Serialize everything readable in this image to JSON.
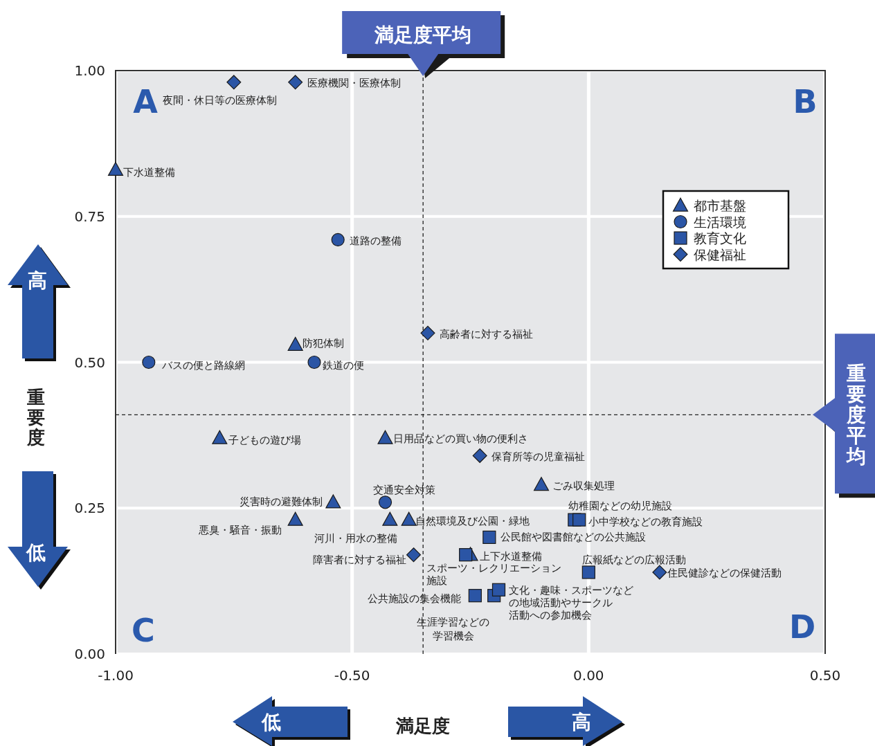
{
  "chart_data": {
    "type": "scatter",
    "xlabel": "満足度",
    "ylabel": "重要度",
    "xlim": [
      -1,
      0.5
    ],
    "ylim": [
      0,
      1
    ],
    "xticks": [
      {
        "value": -1,
        "label": "-1.00"
      },
      {
        "value": -0.5,
        "label": "-0.50"
      },
      {
        "value": 0,
        "label": "0.00"
      },
      {
        "value": 0.5,
        "label": "0.50"
      }
    ],
    "yticks": [
      {
        "value": 0,
        "label": "0.00"
      },
      {
        "value": 0.25,
        "label": "0.25"
      },
      {
        "value": 0.5,
        "label": "0.50"
      },
      {
        "value": 0.75,
        "label": "0.75"
      },
      {
        "value": 1,
        "label": "1.00"
      }
    ],
    "grid": true,
    "legend": "top right",
    "series": [
      {
        "name": "都市基盤",
        "color": "#2b55a5",
        "marker": "triangle",
        "x": [
          -1.0,
          -0.62,
          -0.78,
          -0.43,
          -0.54,
          -0.62,
          -0.42,
          -0.38,
          -0.1,
          -0.25
        ],
        "values": [
          0.83,
          0.53,
          0.37,
          0.37,
          0.26,
          0.23,
          0.23,
          0.23,
          0.29,
          0.17
        ]
      },
      {
        "name": "生活環境",
        "color": "#2b55a5",
        "marker": "circle",
        "x": [
          -0.53,
          -0.93,
          -0.58,
          -0.43
        ],
        "values": [
          0.71,
          0.5,
          0.5,
          0.26
        ]
      },
      {
        "name": "教育文化",
        "color": "#2b55a5",
        "marker": "square",
        "x": [
          -0.03,
          -0.02,
          -0.21,
          -0.26,
          0.0,
          -0.24,
          -0.2,
          -0.19
        ],
        "values": [
          0.23,
          0.23,
          0.2,
          0.17,
          0.14,
          0.1,
          0.1,
          0.11
        ]
      },
      {
        "name": "保健福祉",
        "color": "#2b55a5",
        "marker": "diamond",
        "x": [
          -0.75,
          -0.62,
          -0.34,
          -0.23,
          -0.37,
          0.15
        ],
        "values": [
          0.98,
          0.98,
          0.55,
          0.34,
          0.17,
          0.14
        ]
      }
    ],
    "ref_lines": [
      {
        "axis": "x",
        "value": -0.35,
        "label": "満足度平均",
        "line_style": "dashed"
      },
      {
        "axis": "y",
        "value": 0.41,
        "label": "重要度平均",
        "line_style": "dashed"
      }
    ],
    "annotations": [
      {
        "text": "下水道整備",
        "x": -1.0,
        "y": 0.83
      },
      {
        "text": "防犯体制",
        "x": -0.62,
        "y": 0.53
      },
      {
        "text": "子どもの遊び場",
        "x": -0.78,
        "y": 0.37
      },
      {
        "text": "日用品などの買い物の便利さ",
        "x": -0.43,
        "y": 0.37
      },
      {
        "text": "災害時の避難体制",
        "x": -0.54,
        "y": 0.26
      },
      {
        "text": "悪臭・騒音・振動",
        "x": -0.62,
        "y": 0.23
      },
      {
        "text": "河川・用水の整備",
        "x": -0.42,
        "y": 0.23
      },
      {
        "text": "自然環境及び公園・緑地",
        "x": -0.38,
        "y": 0.23
      },
      {
        "text": "ごみ収集処理",
        "x": -0.1,
        "y": 0.29
      },
      {
        "text": "上下水道整備",
        "x": -0.25,
        "y": 0.17
      },
      {
        "text": "道路の整備",
        "x": -0.53,
        "y": 0.71
      },
      {
        "text": "バスの便と路線網",
        "x": -0.93,
        "y": 0.5
      },
      {
        "text": "鉄道の便",
        "x": -0.58,
        "y": 0.5
      },
      {
        "text": "交通安全対策",
        "x": -0.43,
        "y": 0.26
      },
      {
        "text": "幼稚園などの幼児施設",
        "x": -0.03,
        "y": 0.23
      },
      {
        "text": "小中学校などの教育施設",
        "x": -0.02,
        "y": 0.23
      },
      {
        "text": "公民館や図書館などの公共施設",
        "x": -0.21,
        "y": 0.2
      },
      {
        "text": "スポーツ・レクリエーション施設",
        "x": -0.26,
        "y": 0.17
      },
      {
        "text": "広報紙などの広報活動",
        "x": 0.0,
        "y": 0.14
      },
      {
        "text": "公共施設の集会機能",
        "x": -0.24,
        "y": 0.1
      },
      {
        "text": "生涯学習などの学習機会",
        "x": -0.2,
        "y": 0.1
      },
      {
        "text": "文化・趣味・スポーツなどの地域活動やサークル活動への参加機会",
        "x": -0.19,
        "y": 0.11
      },
      {
        "text": "夜間・休日等の医療体制",
        "x": -0.75,
        "y": 0.98
      },
      {
        "text": "医療機関・医療体制",
        "x": -0.62,
        "y": 0.98
      },
      {
        "text": "高齢者に対する福祉",
        "x": -0.34,
        "y": 0.55
      },
      {
        "text": "保育所等の児童福祉",
        "x": -0.23,
        "y": 0.34
      },
      {
        "text": "障害者に対する福祉",
        "x": -0.37,
        "y": 0.17
      },
      {
        "text": "住民健診などの保健活動",
        "x": 0.15,
        "y": 0.14
      },
      "A",
      "B",
      "C",
      "D",
      "高",
      "低",
      "低",
      "高"
    ]
  }
}
